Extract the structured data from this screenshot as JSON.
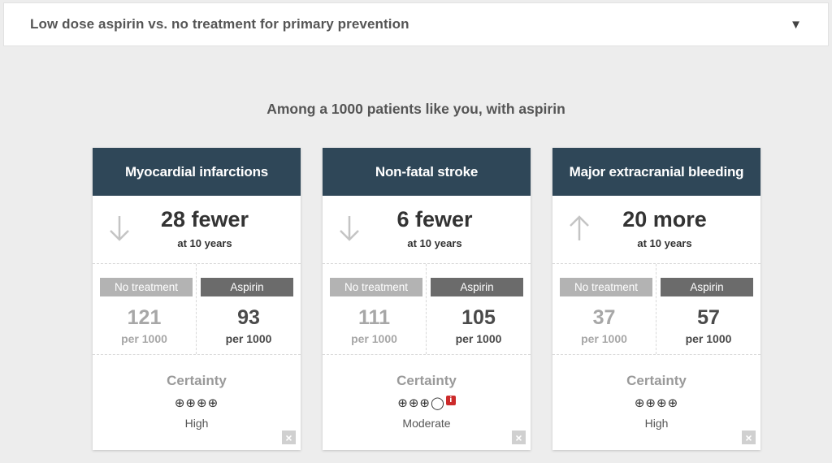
{
  "header": {
    "title": "Low dose aspirin vs. no treatment for primary prevention",
    "dropdown_icon": "▼"
  },
  "heading": "Among a 1000 patients like you, with aspirin",
  "colors": {
    "card_header_bg": "#2f4758",
    "no_treatment_tag": "#b3b3b3",
    "aspirin_tag": "#6b6b6b",
    "info_badge": "#cc2b2b"
  },
  "cards": [
    {
      "title": "Myocardial infarctions",
      "direction_icon": "arrow-down-icon",
      "effect": "28 fewer",
      "timeframe": "at 10 years",
      "no_treatment_label": "No treatment",
      "no_treatment_value": "121",
      "no_treatment_unit": "per 1000",
      "aspirin_label": "Aspirin",
      "aspirin_value": "93",
      "aspirin_unit": "per 1000",
      "certainty_label": "Certainty",
      "certainty_symbols": "⊕⊕⊕⊕",
      "certainty_level": "High",
      "close_icon": "×"
    },
    {
      "title": "Non-fatal stroke",
      "direction_icon": "arrow-down-icon",
      "effect": "6 fewer",
      "timeframe": "at 10 years",
      "no_treatment_label": "No treatment",
      "no_treatment_value": "111",
      "no_treatment_unit": "per 1000",
      "aspirin_label": "Aspirin",
      "aspirin_value": "105",
      "aspirin_unit": "per 1000",
      "certainty_label": "Certainty",
      "certainty_symbols": "⊕⊕⊕◯",
      "certainty_info": "i",
      "certainty_level": "Moderate",
      "close_icon": "×"
    },
    {
      "title": "Major extracranial bleeding",
      "direction_icon": "arrow-up-icon",
      "effect": "20 more",
      "timeframe": "at 10 years",
      "no_treatment_label": "No treatment",
      "no_treatment_value": "37",
      "no_treatment_unit": "per 1000",
      "aspirin_label": "Aspirin",
      "aspirin_value": "57",
      "aspirin_unit": "per 1000",
      "certainty_label": "Certainty",
      "certainty_symbols": "⊕⊕⊕⊕",
      "certainty_level": "High",
      "close_icon": "×"
    }
  ]
}
